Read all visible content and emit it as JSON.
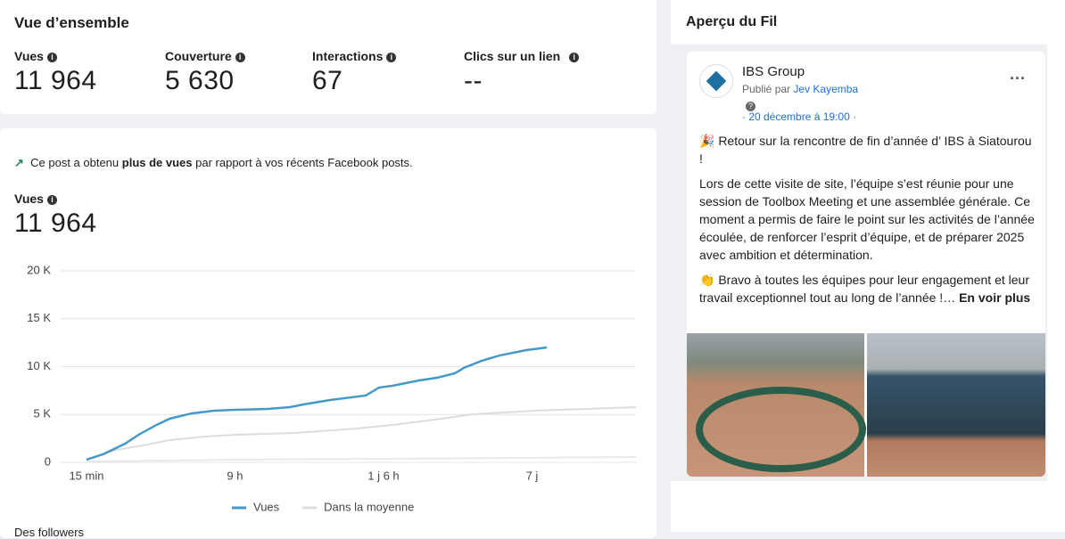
{
  "overview": {
    "title": "Vue d’ensemble",
    "metrics": [
      {
        "label": "Vues",
        "value": "11 964"
      },
      {
        "label": "Couverture",
        "value": "5 630"
      },
      {
        "label": "Interactions",
        "value": "67"
      },
      {
        "label": "Clics sur un lien",
        "value": "--"
      }
    ]
  },
  "notice": [
    "Ce post a obtenu ",
    "plus de vues",
    " par rapport à vos récents Facebook posts."
  ],
  "views": {
    "label": "Vues",
    "value": "11 964"
  },
  "chart_data": {
    "type": "line",
    "xlim": [
      -0.18,
      3.7
    ],
    "xticks": [
      {
        "value": 0,
        "label": "15 min"
      },
      {
        "value": 1,
        "label": "9 h"
      },
      {
        "value": 2,
        "label": "1 j 6 h"
      },
      {
        "value": 3,
        "label": "7 j"
      }
    ],
    "ylim": [
      0,
      20000
    ],
    "yticks": [
      0,
      {
        "value": 5000,
        "label": "5 K"
      },
      {
        "value": 10000,
        "label": "10 K"
      },
      {
        "value": 15000,
        "label": "15 K"
      },
      {
        "value": 20000,
        "label": "20 K"
      }
    ],
    "grid": true,
    "series": [
      {
        "name": "Vues",
        "color": "#4599c9",
        "x": [
          0,
          0.11,
          0.26,
          0.35,
          0.47,
          0.56,
          0.71,
          0.86,
          1,
          1.22,
          1.37,
          1.46,
          1.64,
          1.88,
          1.97,
          2.06,
          2.24,
          2.36,
          2.48,
          2.54,
          2.66,
          2.78,
          2.96,
          3.1
        ],
        "values": [
          280,
          840,
          1950,
          2880,
          3900,
          4560,
          5120,
          5400,
          5490,
          5580,
          5770,
          6050,
          6510,
          6980,
          7810,
          8000,
          8560,
          8840,
          9300,
          9860,
          10600,
          11160,
          11720,
          12000
        ]
      },
      {
        "name": "Dans la moyenne",
        "color": "#dcdcdc",
        "x": [
          0,
          0.2,
          0.38,
          0.56,
          0.8,
          1,
          1.4,
          1.82,
          2.06,
          2.3,
          2.6,
          3.02,
          3.7
        ],
        "values": [
          280,
          1300,
          1770,
          2330,
          2700,
          2880,
          3070,
          3530,
          3910,
          4370,
          5020,
          5400,
          5770
        ]
      },
      {
        "color": "#e8e8e8",
        "x": [
          0,
          1,
          2,
          3.7
        ],
        "values": [
          90,
          280,
          370,
          560
        ]
      }
    ]
  },
  "followers": "Des followers",
  "feed": {
    "title": "Aperçu du Fil",
    "page": "IBS Group",
    "published_by": "Publié par",
    "author": "Jev Kayemba",
    "date": "· 20 décembre à 19:00 ·",
    "paragraphs": [
      "🎉 Retour sur la rencontre de fin d’année d’ IBS à Siatourou !",
      "Lors de cette visite de site, l’équipe s’est réunie pour une session de Toolbox Meeting et une assemblée générale. Ce moment a permis de faire le point sur les activités de l’année écoulée, de renforcer l’esprit d’équipe, et de préparer 2025 avec ambition et détermination.",
      "👏 Bravo à toutes les équipes pour leur engagement et leur travail exceptionnel tout au long de l’année !…"
    ],
    "more": "En voir plus"
  }
}
